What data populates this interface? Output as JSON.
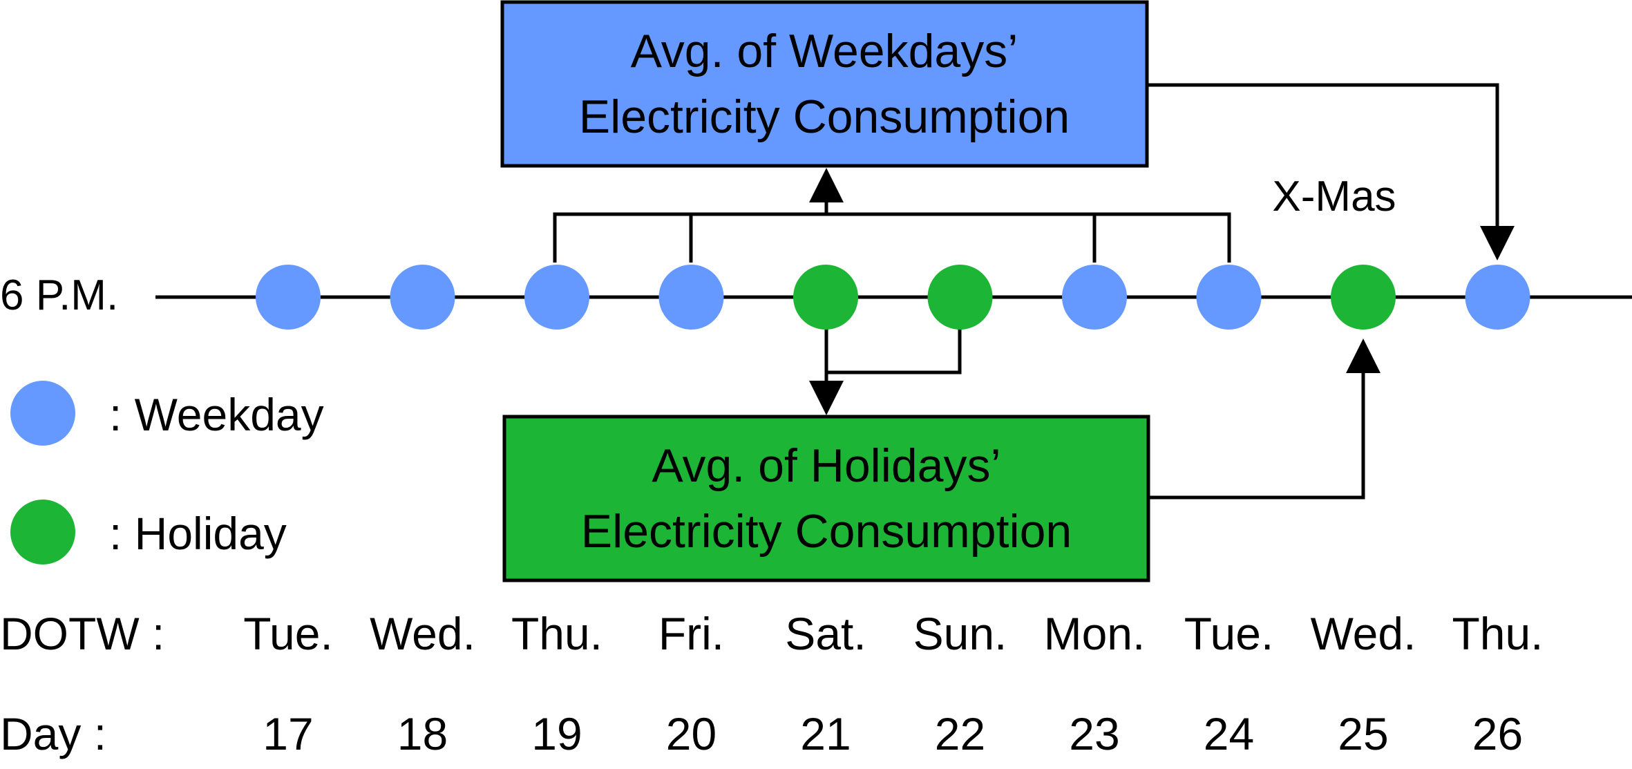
{
  "time_label": "6 P.M.",
  "special_day_label": "X-Mas",
  "colors": {
    "weekday": "#6699ff",
    "holiday": "#1db535",
    "line": "#000000"
  },
  "boxes": {
    "weekday_avg": {
      "line1": "Avg. of Weekdays’",
      "line2": "Electricity Consumption"
    },
    "holiday_avg": {
      "line1": "Avg. of Holidays’",
      "line2": "Electricity Consumption"
    }
  },
  "legend": {
    "weekday": ": Weekday",
    "holiday": ": Holiday"
  },
  "rows": {
    "dotw_label": "DOTW :",
    "day_label": "Day :"
  },
  "days": [
    {
      "dotw": "Tue.",
      "day": "17",
      "type": "weekday"
    },
    {
      "dotw": "Wed.",
      "day": "18",
      "type": "weekday"
    },
    {
      "dotw": "Thu.",
      "day": "19",
      "type": "weekday"
    },
    {
      "dotw": "Fri.",
      "day": "20",
      "type": "weekday"
    },
    {
      "dotw": "Sat.",
      "day": "21",
      "type": "holiday"
    },
    {
      "dotw": "Sun.",
      "day": "22",
      "type": "holiday"
    },
    {
      "dotw": "Mon.",
      "day": "23",
      "type": "weekday"
    },
    {
      "dotw": "Tue.",
      "day": "24",
      "type": "weekday"
    },
    {
      "dotw": "Wed.",
      "day": "25",
      "type": "holiday"
    },
    {
      "dotw": "Thu.",
      "day": "26",
      "type": "weekday"
    }
  ]
}
